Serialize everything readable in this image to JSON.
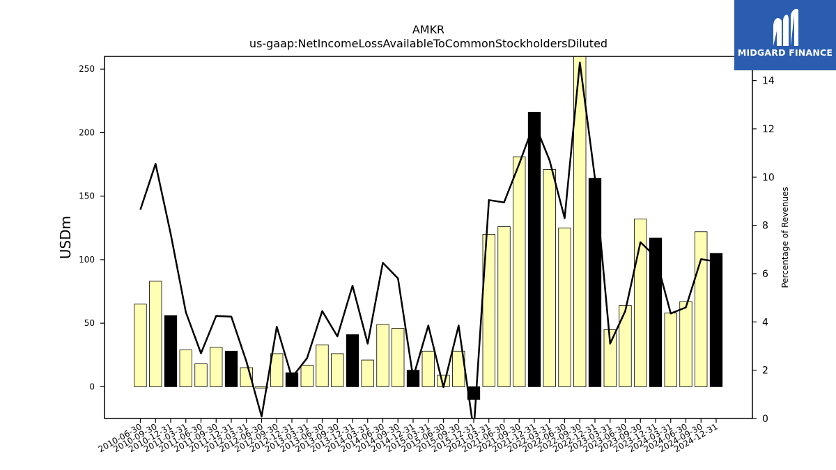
{
  "logo": {
    "text": "MIDGARD FINANCE",
    "icon": "midgard-m-logo-icon",
    "color": "#2a5db0"
  },
  "chart_data": {
    "type": "bar",
    "title": "AMKR",
    "subtitle": "us-gaap:NetIncomeLossAvailableToCommonStockholdersDiluted",
    "ylabel": "USDm",
    "ylabel_right": "Percentage of Revenues",
    "ylim": [
      -25,
      260
    ],
    "ylim_right": [
      0,
      15
    ],
    "yticks": [
      0,
      50,
      100,
      150,
      200,
      250
    ],
    "yticks_right": [
      0,
      2,
      4,
      6,
      8,
      10,
      12,
      14
    ],
    "grid": false,
    "colors": {
      "quarter_bar": "#ffffb3",
      "year_end_bar": "#000000",
      "line": "#000000"
    },
    "categories": [
      "2010-06-30",
      "2010-09-30",
      "2010-12-31",
      "2011-03-31",
      "2011-06-30",
      "2011-09-30",
      "2011-12-31",
      "2012-03-31",
      "2012-06-30",
      "2012-09-30",
      "2012-12-31",
      "2013-03-31",
      "2013-06-30",
      "2013-09-30",
      "2013-12-31",
      "2014-03-31",
      "2014-06-30",
      "2014-09-30",
      "2014-12-31",
      "2015-03-31",
      "2015-06-30",
      "2015-09-30",
      "2015-12-31",
      "2021-03-31",
      "2021-06-30",
      "2021-09-30",
      "2021-12-31",
      "2022-03-31",
      "2022-06-30",
      "2022-09-30",
      "2022-12-31",
      "2023-03-31",
      "2023-06-30",
      "2023-09-30",
      "2023-12-31",
      "2024-03-31",
      "2024-06-30",
      "2024-09-30",
      "2024-12-31"
    ],
    "series": [
      {
        "type": "bar",
        "values": [
          65,
          83,
          56,
          29,
          18,
          31,
          28,
          15,
          -1,
          26,
          11,
          17,
          33,
          26,
          41,
          21,
          49,
          46,
          13,
          28,
          9,
          28,
          -10,
          120,
          126,
          181,
          216,
          171,
          125,
          261,
          164,
          45,
          64,
          132,
          117,
          58,
          67,
          122,
          105
        ],
        "year_end": [
          false,
          false,
          true,
          false,
          false,
          false,
          true,
          false,
          false,
          false,
          true,
          false,
          false,
          false,
          true,
          false,
          false,
          false,
          true,
          false,
          false,
          false,
          true,
          false,
          false,
          false,
          true,
          false,
          false,
          false,
          true,
          false,
          false,
          false,
          true,
          false,
          false,
          false,
          true
        ]
      },
      {
        "type": "line",
        "axis": "right",
        "values": [
          8.65,
          10.55,
          7.65,
          4.4,
          2.7,
          4.25,
          4.22,
          2.35,
          0.08,
          3.8,
          1.7,
          2.5,
          4.45,
          3.4,
          5.5,
          3.1,
          6.45,
          5.8,
          1.7,
          3.85,
          1.3,
          3.85,
          -0.5,
          9.05,
          8.95,
          10.55,
          12.25,
          10.7,
          8.3,
          14.75,
          9.95,
          3.1,
          4.45,
          7.3,
          6.7,
          4.35,
          4.6,
          6.6,
          6.5
        ]
      }
    ]
  }
}
